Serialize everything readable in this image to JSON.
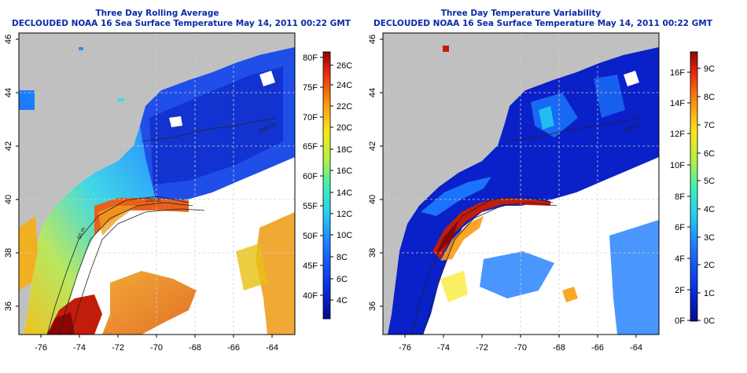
{
  "panels": [
    {
      "title_line1": "Three Day Rolling Average",
      "title_line2": "DECLOUDED NOAA 16 Sea Surface Temperature May 14, 2011 00:22 GMT",
      "x_ticks": [
        "-76",
        "-74",
        "-72",
        "-70",
        "-68",
        "-66",
        "-64"
      ],
      "y_ticks": [
        "36",
        "38",
        "40",
        "42",
        "44",
        "46"
      ],
      "colorbar_left": [
        "80F",
        "75F",
        "70F",
        "65F",
        "60F",
        "55F",
        "50F",
        "45F",
        "40F"
      ],
      "colorbar_right": [
        "26C",
        "24C",
        "22C",
        "20C",
        "18C",
        "16C",
        "14C",
        "12C",
        "10C",
        "8C",
        "6C",
        "4C"
      ],
      "contour_labels": [
        "50 m",
        "200 m",
        "1000 m"
      ]
    },
    {
      "title_line1": "Three Day Temperature Variability",
      "title_line2": "DECLOUDED NOAA 16 Sea Surface Temperature May 14, 2011 00:22 GMT",
      "x_ticks": [
        "-76",
        "-74",
        "-72",
        "-70",
        "-68",
        "-66",
        "-64"
      ],
      "y_ticks": [
        "36",
        "38",
        "40",
        "42",
        "44",
        "46"
      ],
      "colorbar_left": [
        "16F",
        "14F",
        "12F",
        "10F",
        "8F",
        "6F",
        "4F",
        "2F",
        "0F"
      ],
      "colorbar_right": [
        "9C",
        "8C",
        "7C",
        "6C",
        "5C",
        "4C",
        "3C",
        "2C",
        "1C",
        "0C"
      ],
      "contour_labels": [
        "1000 m"
      ]
    }
  ],
  "colors": {
    "land": "#c0c0c0",
    "no_data": "#ffffff",
    "title": "#0a2aa8",
    "grid": "#d0d0d0"
  }
}
